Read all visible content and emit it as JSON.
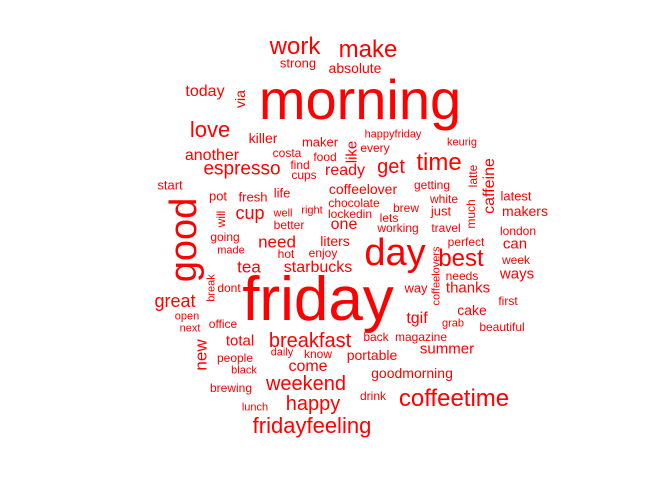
{
  "color": "#ff0000",
  "words": [
    {
      "text": "friday"
    },
    {
      "text": "morning"
    },
    {
      "text": "good"
    },
    {
      "text": "day"
    },
    {
      "text": "coffeetime"
    },
    {
      "text": "fridayfeeling"
    },
    {
      "text": "breakfast"
    },
    {
      "text": "work"
    },
    {
      "text": "make"
    },
    {
      "text": "best"
    },
    {
      "text": "time"
    },
    {
      "text": "love"
    },
    {
      "text": "weekend"
    },
    {
      "text": "happy"
    },
    {
      "text": "espresso"
    },
    {
      "text": "great"
    },
    {
      "text": "get"
    },
    {
      "text": "cup"
    },
    {
      "text": "need"
    },
    {
      "text": "starbucks"
    },
    {
      "text": "tea"
    },
    {
      "text": "caffeine"
    },
    {
      "text": "new"
    },
    {
      "text": "another"
    },
    {
      "text": "today"
    },
    {
      "text": "one"
    },
    {
      "text": "come"
    },
    {
      "text": "total"
    },
    {
      "text": "summer"
    },
    {
      "text": "portable"
    },
    {
      "text": "goodmorning"
    },
    {
      "text": "tgif"
    },
    {
      "text": "ready"
    },
    {
      "text": "thanks"
    },
    {
      "text": "coffeelover"
    },
    {
      "text": "can"
    },
    {
      "text": "ways"
    },
    {
      "text": "cake"
    },
    {
      "text": "like"
    },
    {
      "text": "via"
    },
    {
      "text": "liters"
    },
    {
      "text": "makers"
    },
    {
      "text": "absolute"
    },
    {
      "text": "killer"
    },
    {
      "text": "strong"
    },
    {
      "text": "maker"
    },
    {
      "text": "food"
    },
    {
      "text": "happyfriday"
    },
    {
      "text": "every"
    },
    {
      "text": "keurig"
    },
    {
      "text": "costa"
    },
    {
      "text": "find"
    },
    {
      "text": "cups"
    },
    {
      "text": "latte"
    },
    {
      "text": "start"
    },
    {
      "text": "pot"
    },
    {
      "text": "fresh"
    },
    {
      "text": "life"
    },
    {
      "text": "getting"
    },
    {
      "text": "white"
    },
    {
      "text": "latest"
    },
    {
      "text": "chocolate"
    },
    {
      "text": "brew"
    },
    {
      "text": "just"
    },
    {
      "text": "much"
    },
    {
      "text": "will"
    },
    {
      "text": "well"
    },
    {
      "text": "right"
    },
    {
      "text": "lockedin"
    },
    {
      "text": "lets"
    },
    {
      "text": "better"
    },
    {
      "text": "working"
    },
    {
      "text": "travel"
    },
    {
      "text": "london"
    },
    {
      "text": "going"
    },
    {
      "text": "perfect"
    },
    {
      "text": "made"
    },
    {
      "text": "hot"
    },
    {
      "text": "enjoy"
    },
    {
      "text": "week"
    },
    {
      "text": "coffeelovers"
    },
    {
      "text": "needs"
    },
    {
      "text": "break"
    },
    {
      "text": "dont"
    },
    {
      "text": "way"
    },
    {
      "text": "first"
    },
    {
      "text": "open"
    },
    {
      "text": "next"
    },
    {
      "text": "office"
    },
    {
      "text": "grab"
    },
    {
      "text": "beautiful"
    },
    {
      "text": "back"
    },
    {
      "text": "magazine"
    },
    {
      "text": "people"
    },
    {
      "text": "daily"
    },
    {
      "text": "know"
    },
    {
      "text": "black"
    },
    {
      "text": "brewing"
    },
    {
      "text": "drink"
    },
    {
      "text": "lunch"
    }
  ]
}
